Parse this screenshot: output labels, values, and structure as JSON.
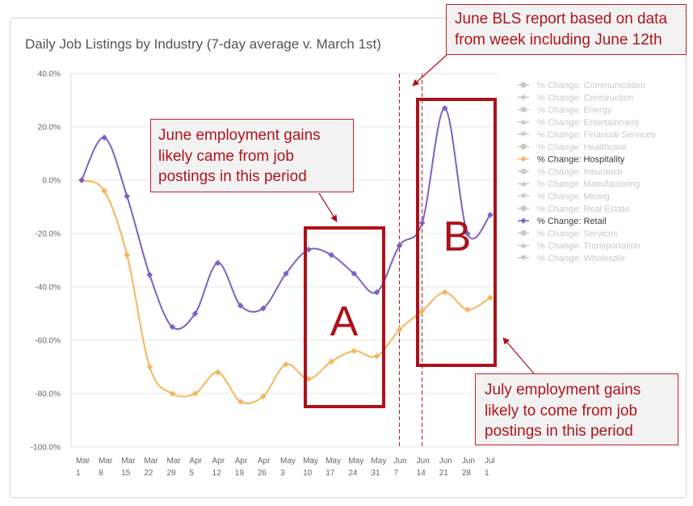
{
  "colors": {
    "title_text": "#555555",
    "axis_text": "#666666",
    "gridline": "#e6e6e6",
    "axis_line": "#dddddd",
    "legend_inactive": "#c9c9c9",
    "legend_active_text": "#3a3a3a",
    "annotation_red": "#ad1119",
    "callout_fill": "#f2f2f2"
  },
  "chart_data": {
    "type": "line",
    "title": "Daily Job Listings by Industry (7-day average v. March 1st)",
    "xlabel": "",
    "ylabel": "",
    "ylim": [
      -100,
      40
    ],
    "grid": true,
    "yticks": [
      {
        "value": 40,
        "label": "40.0%"
      },
      {
        "value": 20,
        "label": "20.0%"
      },
      {
        "value": 0,
        "label": "0.0%"
      },
      {
        "value": -20,
        "label": "-20.0%"
      },
      {
        "value": -40,
        "label": "-40.0%"
      },
      {
        "value": -60,
        "label": "-60.0%"
      },
      {
        "value": -80,
        "label": "-80.0%"
      },
      {
        "value": -100,
        "label": "-100.0%"
      }
    ],
    "categories": [
      {
        "month": "Mar",
        "day": "1"
      },
      {
        "month": "Mar",
        "day": "8"
      },
      {
        "month": "Mar",
        "day": "15"
      },
      {
        "month": "Mar",
        "day": "22"
      },
      {
        "month": "Mar",
        "day": "29"
      },
      {
        "month": "Apr",
        "day": "5"
      },
      {
        "month": "Apr",
        "day": "12"
      },
      {
        "month": "Apr",
        "day": "19"
      },
      {
        "month": "Apr",
        "day": "26"
      },
      {
        "month": "May",
        "day": "3"
      },
      {
        "month": "May",
        "day": "10"
      },
      {
        "month": "May",
        "day": "17"
      },
      {
        "month": "May",
        "day": "24"
      },
      {
        "month": "May",
        "day": "31"
      },
      {
        "month": "Jun",
        "day": "7"
      },
      {
        "month": "Jun",
        "day": "14"
      },
      {
        "month": "Jun",
        "day": "21"
      },
      {
        "month": "Jun",
        "day": "28"
      },
      {
        "month": "Jul",
        "day": "1"
      }
    ],
    "series": [
      {
        "name": "% Change: Hospitality",
        "color": "#f5b55e",
        "marker": "diamond",
        "values": [
          0,
          -4,
          -28,
          -70,
          -80,
          -80,
          -72,
          -83,
          -81,
          -69,
          -74.5,
          -68,
          -64,
          -66,
          -56,
          -49,
          -42,
          -48.5,
          -44
        ]
      },
      {
        "name": "% Change: Retail",
        "color": "#7e60c4",
        "marker": "diamond",
        "values": [
          0,
          16,
          -6,
          -35.5,
          -55,
          -50,
          -31,
          -47,
          -48,
          -35,
          -26,
          -28,
          -35,
          -42,
          -24.5,
          -16,
          27,
          -20,
          -13
        ]
      }
    ],
    "legend": [
      {
        "label": "% Change: Communication",
        "marker": "circle"
      },
      {
        "label": "% Change: Construction",
        "marker": "diamond"
      },
      {
        "label": "% Change: Energy",
        "marker": "square"
      },
      {
        "label": "% Change: Entertainment",
        "marker": "triangle"
      },
      {
        "label": "% Change: Financial Services",
        "marker": "triangle-down"
      },
      {
        "label": "% Change: Healthcare",
        "marker": "circle"
      },
      {
        "series_index": 0
      },
      {
        "label": "% Change: Insurance",
        "marker": "square"
      },
      {
        "label": "% Change: Manufacturing",
        "marker": "triangle"
      },
      {
        "label": "% Change: Mining",
        "marker": "triangle-down"
      },
      {
        "label": "% Change: Real Estate",
        "marker": "circle"
      },
      {
        "series_index": 1
      },
      {
        "label": "% Change: Services",
        "marker": "square"
      },
      {
        "label": "% Change: Transportation",
        "marker": "triangle"
      },
      {
        "label": "% Change: Wholesale",
        "marker": "triangle-down"
      }
    ],
    "reference_lines_at_index": [
      14,
      15
    ]
  },
  "annotations": {
    "bls_note": {
      "lines": [
        "June BLS report based on data",
        "from week including June 12th"
      ]
    },
    "june_note": {
      "lines": [
        "June employment gains",
        "likely came from job",
        "postings in this period"
      ]
    },
    "july_note": {
      "lines": [
        "July employment gains",
        "likely to come from job",
        "postings in this period"
      ]
    },
    "box_a": {
      "label": "A"
    },
    "box_b": {
      "label": "B"
    }
  }
}
